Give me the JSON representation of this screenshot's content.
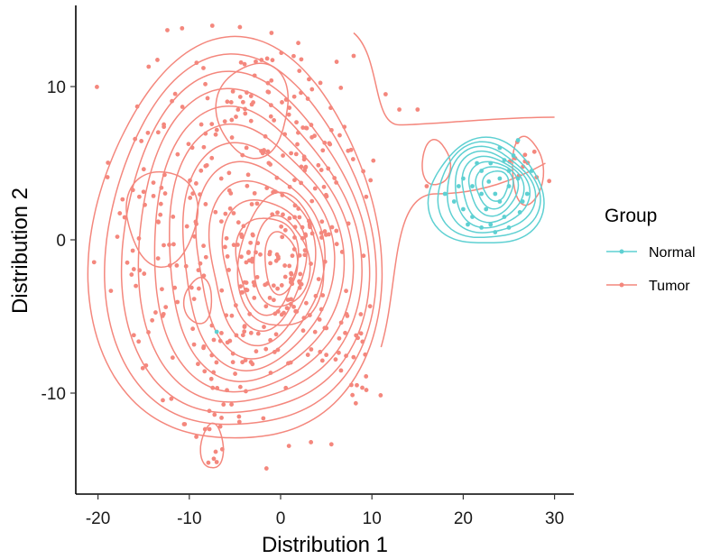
{
  "chart_data": {
    "type": "scatter",
    "title": "",
    "xlabel": "Distribution 1",
    "ylabel": "Distribution 2",
    "xlim": [
      -22.5,
      32
    ],
    "ylim": [
      -16.5,
      15.5
    ],
    "x_ticks": [
      -20,
      -10,
      0,
      10,
      20,
      30
    ],
    "y_ticks": [
      -10,
      0,
      10
    ],
    "x_tick_labels": [
      "-20",
      "-10",
      "0",
      "10",
      "20",
      "30"
    ],
    "y_tick_labels": [
      "-10",
      "0",
      "10"
    ],
    "grid": false,
    "legend": {
      "title": "Group",
      "position": "right",
      "entries": [
        "Normal",
        "Tumor"
      ]
    },
    "series": [
      {
        "name": "Normal",
        "color": "#5ED0D2",
        "points": [
          [
            18,
            3
          ],
          [
            19,
            2.5
          ],
          [
            20,
            4
          ],
          [
            21,
            3.5
          ],
          [
            22,
            4.5
          ],
          [
            22.5,
            2
          ],
          [
            23,
            5
          ],
          [
            23.5,
            3
          ],
          [
            24,
            4
          ],
          [
            24.5,
            1.5
          ],
          [
            25,
            3.5
          ],
          [
            25.5,
            5.5
          ],
          [
            26,
            4
          ],
          [
            26.5,
            2.5
          ],
          [
            27,
            3
          ],
          [
            21,
            1.5
          ],
          [
            22,
            3
          ],
          [
            23,
            1
          ],
          [
            24,
            2.5
          ],
          [
            25,
            4.5
          ],
          [
            20,
            2
          ],
          [
            19.5,
            3.5
          ],
          [
            21.5,
            5
          ],
          [
            24,
            6
          ],
          [
            26,
            6.5
          ],
          [
            27.5,
            4.5
          ],
          [
            22,
            0.8
          ],
          [
            23.5,
            0.5
          ],
          [
            25,
            0.8
          ],
          [
            -7,
            -6
          ],
          [
            20.5,
            1
          ],
          [
            24.5,
            5.2
          ],
          [
            22.8,
            3.8
          ],
          [
            26.2,
            1.8
          ]
        ],
        "density_centers": [
          [
            23,
            3.8
          ],
          [
            24.5,
            2.5
          ],
          [
            21.5,
            2.2
          ]
        ],
        "density_levels": 8
      },
      {
        "name": "Tumor",
        "color": "#F4877D",
        "points": [],
        "density_centers": [
          [
            0,
            -1.5
          ],
          [
            -13,
            1.5
          ],
          [
            -3,
            9
          ],
          [
            -9,
            -4
          ],
          [
            -7.5,
            -13
          ],
          [
            27,
            4.5
          ],
          [
            17,
            5
          ]
        ],
        "density_levels": 11
      }
    ]
  }
}
